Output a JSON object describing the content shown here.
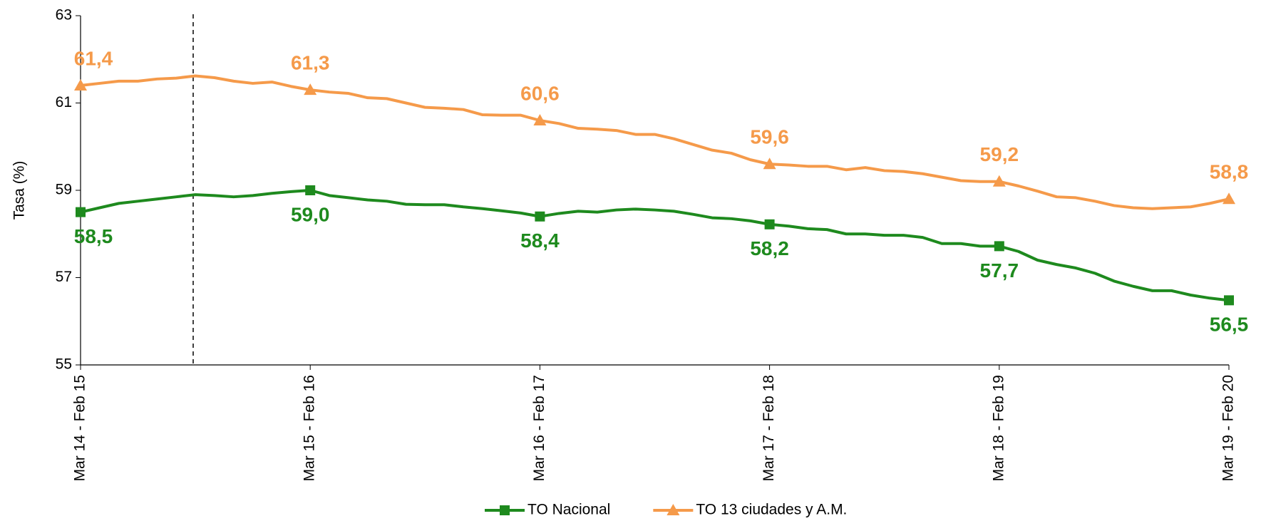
{
  "chart_data": {
    "type": "line",
    "y_label": "Tasa (%)",
    "categories": [
      "Mar 14 - Feb 15",
      null,
      null,
      null,
      null,
      null,
      null,
      null,
      null,
      null,
      null,
      null,
      "Mar 15 - Feb 16",
      null,
      null,
      null,
      null,
      null,
      null,
      null,
      null,
      null,
      null,
      null,
      "Mar 16 - Feb 17",
      null,
      null,
      null,
      null,
      null,
      null,
      null,
      null,
      null,
      null,
      null,
      "Mar 17 - Feb 18",
      null,
      null,
      null,
      null,
      null,
      null,
      null,
      null,
      null,
      null,
      null,
      "Mar 18 - Feb 19",
      null,
      null,
      null,
      null,
      null,
      null,
      null,
      null,
      null,
      null,
      null,
      "Mar 19 - Feb 20"
    ],
    "series": [
      {
        "name": "TO Nacional",
        "color": "#1e8a1e",
        "marker": "square",
        "values": [
          58.5,
          58.6,
          58.7,
          58.75,
          58.8,
          58.85,
          58.9,
          58.88,
          58.85,
          58.88,
          58.93,
          58.97,
          59.0,
          58.88,
          58.83,
          58.78,
          58.75,
          58.68,
          58.67,
          58.67,
          58.62,
          58.58,
          58.53,
          58.48,
          58.4,
          58.47,
          58.52,
          58.5,
          58.55,
          58.57,
          58.55,
          58.52,
          58.45,
          58.37,
          58.35,
          58.3,
          58.22,
          58.18,
          58.12,
          58.1,
          58.0,
          58.0,
          57.97,
          57.97,
          57.92,
          57.78,
          57.78,
          57.72,
          57.72,
          57.6,
          57.4,
          57.3,
          57.22,
          57.1,
          56.92,
          56.8,
          56.7,
          56.7,
          56.6,
          56.53,
          56.48
        ],
        "value_labels": [
          "58,5",
          null,
          null,
          null,
          null,
          null,
          null,
          null,
          null,
          null,
          null,
          null,
          "59,0",
          null,
          null,
          null,
          null,
          null,
          null,
          null,
          null,
          null,
          null,
          null,
          "58,4",
          null,
          null,
          null,
          null,
          null,
          null,
          null,
          null,
          null,
          null,
          null,
          "58,2",
          null,
          null,
          null,
          null,
          null,
          null,
          null,
          null,
          null,
          null,
          null,
          "57,7",
          null,
          null,
          null,
          null,
          null,
          null,
          null,
          null,
          null,
          null,
          null,
          "56,5"
        ]
      },
      {
        "name": "TO 13 ciudades y A.M.",
        "color": "#f59a4a",
        "marker": "triangle",
        "values": [
          61.4,
          61.45,
          61.5,
          61.5,
          61.55,
          61.57,
          61.62,
          61.58,
          61.5,
          61.45,
          61.48,
          61.38,
          61.3,
          61.25,
          61.22,
          61.12,
          61.1,
          61.0,
          60.9,
          60.88,
          60.85,
          60.73,
          60.72,
          60.72,
          60.6,
          60.53,
          60.42,
          60.4,
          60.37,
          60.28,
          60.28,
          60.18,
          60.05,
          59.92,
          59.85,
          59.7,
          59.6,
          59.58,
          59.55,
          59.55,
          59.47,
          59.52,
          59.45,
          59.43,
          59.38,
          59.3,
          59.22,
          59.2,
          59.2,
          59.1,
          58.98,
          58.85,
          58.83,
          58.75,
          58.65,
          58.6,
          58.58,
          58.6,
          58.62,
          58.7,
          58.8
        ],
        "value_labels": [
          "61,4",
          null,
          null,
          null,
          null,
          null,
          null,
          null,
          null,
          null,
          null,
          null,
          "61,3",
          null,
          null,
          null,
          null,
          null,
          null,
          null,
          null,
          null,
          null,
          null,
          "60,6",
          null,
          null,
          null,
          null,
          null,
          null,
          null,
          null,
          null,
          null,
          null,
          "59,6",
          null,
          null,
          null,
          null,
          null,
          null,
          null,
          null,
          null,
          null,
          null,
          "59,2",
          null,
          null,
          null,
          null,
          null,
          null,
          null,
          null,
          null,
          null,
          null,
          "58,8"
        ]
      }
    ],
    "ylim": [
      55,
      63
    ],
    "yticks": [
      55,
      57,
      59,
      61,
      63
    ],
    "grid": false,
    "legend": "bottom"
  }
}
